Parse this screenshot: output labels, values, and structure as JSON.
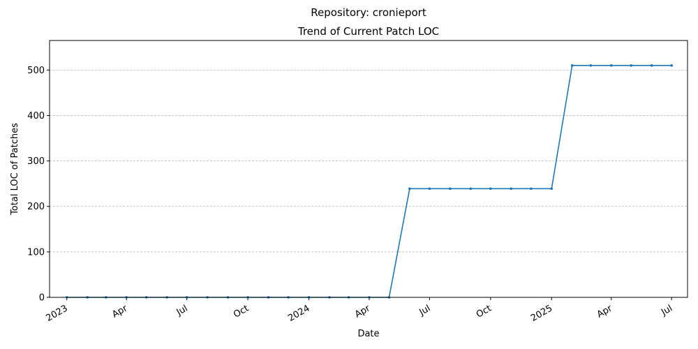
{
  "chart_data": {
    "type": "line",
    "title": "Repository: cronieport",
    "subtitle": "Trend of Current Patch LOC",
    "xlabel": "Date",
    "ylabel": "Total LOC of Patches",
    "ylim": [
      0,
      565
    ],
    "xlim": [
      "2022-12-06",
      "2025-07-25"
    ],
    "grid": "horizontal-dashed",
    "line_color": "#1f77b4",
    "y_ticks": [
      0,
      100,
      200,
      300,
      400,
      500
    ],
    "x_ticks": [
      {
        "date": "2023-01-01",
        "label": "2023"
      },
      {
        "date": "2023-04-01",
        "label": "Apr"
      },
      {
        "date": "2023-07-01",
        "label": "Jul"
      },
      {
        "date": "2023-10-01",
        "label": "Oct"
      },
      {
        "date": "2024-01-01",
        "label": "2024"
      },
      {
        "date": "2024-04-01",
        "label": "Apr"
      },
      {
        "date": "2024-07-01",
        "label": "Jul"
      },
      {
        "date": "2024-10-01",
        "label": "Oct"
      },
      {
        "date": "2025-01-01",
        "label": "2025"
      },
      {
        "date": "2025-04-01",
        "label": "Apr"
      },
      {
        "date": "2025-07-01",
        "label": "Jul"
      }
    ],
    "x": [
      "2023-01-01",
      "2023-02-01",
      "2023-03-01",
      "2023-04-01",
      "2023-05-01",
      "2023-06-01",
      "2023-07-01",
      "2023-08-01",
      "2023-09-01",
      "2023-10-01",
      "2023-11-01",
      "2023-12-01",
      "2024-01-01",
      "2024-02-01",
      "2024-03-01",
      "2024-04-01",
      "2024-05-01",
      "2024-06-01",
      "2024-07-01",
      "2024-08-01",
      "2024-09-01",
      "2024-10-01",
      "2024-11-01",
      "2024-12-01",
      "2025-01-01",
      "2025-02-01",
      "2025-03-01",
      "2025-04-01",
      "2025-05-01",
      "2025-06-01",
      "2025-07-01"
    ],
    "values": [
      0,
      0,
      0,
      0,
      0,
      0,
      0,
      0,
      0,
      0,
      0,
      0,
      0,
      0,
      0,
      0,
      0,
      239,
      239,
      239,
      239,
      239,
      239,
      239,
      239,
      510,
      510,
      510,
      510,
      510,
      510
    ]
  }
}
